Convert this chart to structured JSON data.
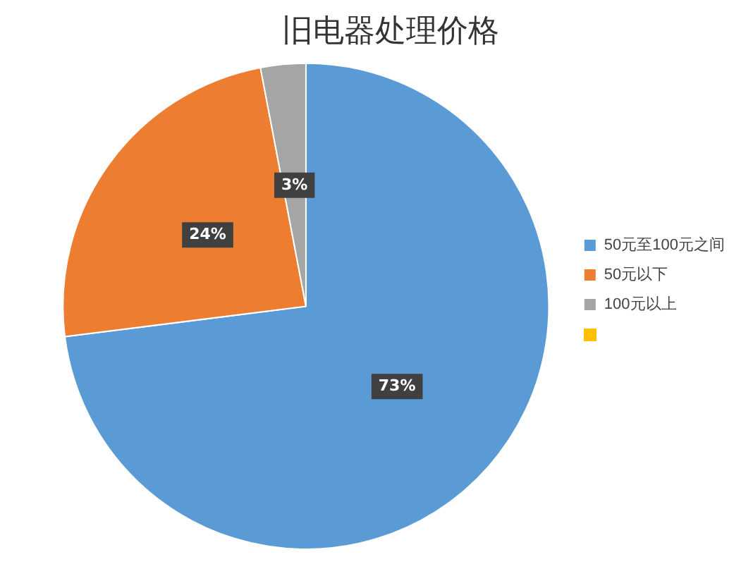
{
  "chart_data": {
    "type": "pie",
    "title": "旧电器处理价格",
    "categories": [
      "50元至100元之间",
      "50元以下",
      "100元以上"
    ],
    "values": [
      73,
      24,
      3
    ],
    "colors": [
      "#5b9bd5",
      "#ed7d31",
      "#a5a5a5"
    ],
    "value_labels": [
      "73%",
      "24%",
      "3%"
    ],
    "legend": "right"
  }
}
